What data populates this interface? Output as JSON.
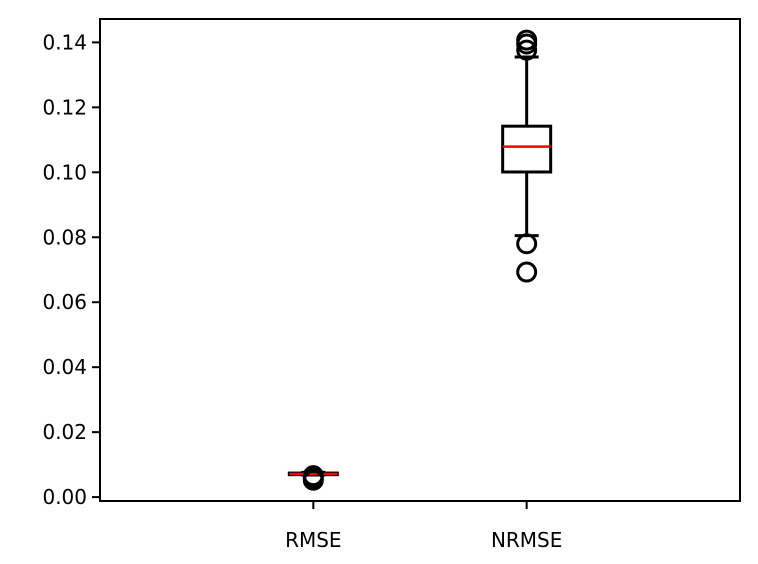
{
  "chart_data": {
    "type": "box",
    "title": "",
    "xlabel": "",
    "ylabel": "",
    "ylim": [
      -0.0012,
      0.1472
    ],
    "yticks": [
      "0.00",
      "0.02",
      "0.04",
      "0.06",
      "0.08",
      "0.10",
      "0.12",
      "0.14"
    ],
    "categories": [
      "RMSE",
      "NRMSE"
    ],
    "boxes": [
      {
        "category": "RMSE",
        "whisker_low": 0.0068,
        "q1": 0.0069,
        "median": 0.0071,
        "q3": 0.0074,
        "whisker_high": 0.0076,
        "outliers": [
          0.0052,
          0.0058,
          0.0066
        ]
      },
      {
        "category": "NRMSE",
        "whisker_low": 0.0805,
        "q1": 0.1001,
        "median": 0.1079,
        "q3": 0.1142,
        "whisker_high": 0.1355,
        "outliers": [
          0.0693,
          0.078,
          0.1376,
          0.1395,
          0.1407
        ]
      }
    ],
    "box_color": "#000000",
    "median_color": "#ff0000",
    "grid": false,
    "legend": "none"
  }
}
